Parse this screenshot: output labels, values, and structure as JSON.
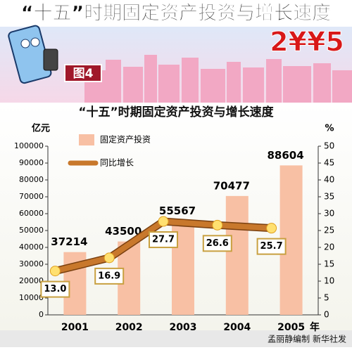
{
  "banner": {
    "title": "“十五”时期固定资产投资与增长速度",
    "figure_label": "图4",
    "badge": "2¥¥5"
  },
  "chart_data": {
    "type": "bar+line",
    "title": "“十五”时期固定资产投资与增长速度",
    "y_label": "亿元",
    "y2_label": "%",
    "x_label": "年",
    "categories": [
      "2001",
      "2002",
      "2003",
      "2004",
      "2005"
    ],
    "series": [
      {
        "name": "固定资产投资",
        "type": "bar",
        "color": "#f8c0a4",
        "values": [
          37214,
          43500,
          55567,
          70477,
          88604
        ]
      },
      {
        "name": "同比增长",
        "type": "line",
        "axis": "y2",
        "color": "#c8782c",
        "values": [
          13.0,
          16.9,
          27.7,
          26.6,
          25.7
        ],
        "value_labels": [
          "13.0",
          "16.9",
          "27.7",
          "26.6",
          "25.7"
        ]
      }
    ],
    "ylim": [
      0,
      100000
    ],
    "yticks": [
      0,
      10000,
      20000,
      30000,
      40000,
      50000,
      60000,
      70000,
      80000,
      90000,
      100000
    ],
    "y2lim": [
      0,
      50
    ],
    "y2ticks": [
      0,
      5,
      10,
      15,
      20,
      25,
      30,
      35,
      40,
      45,
      50
    ]
  },
  "footer": {
    "credit": "孟丽静编制  新华社发"
  }
}
